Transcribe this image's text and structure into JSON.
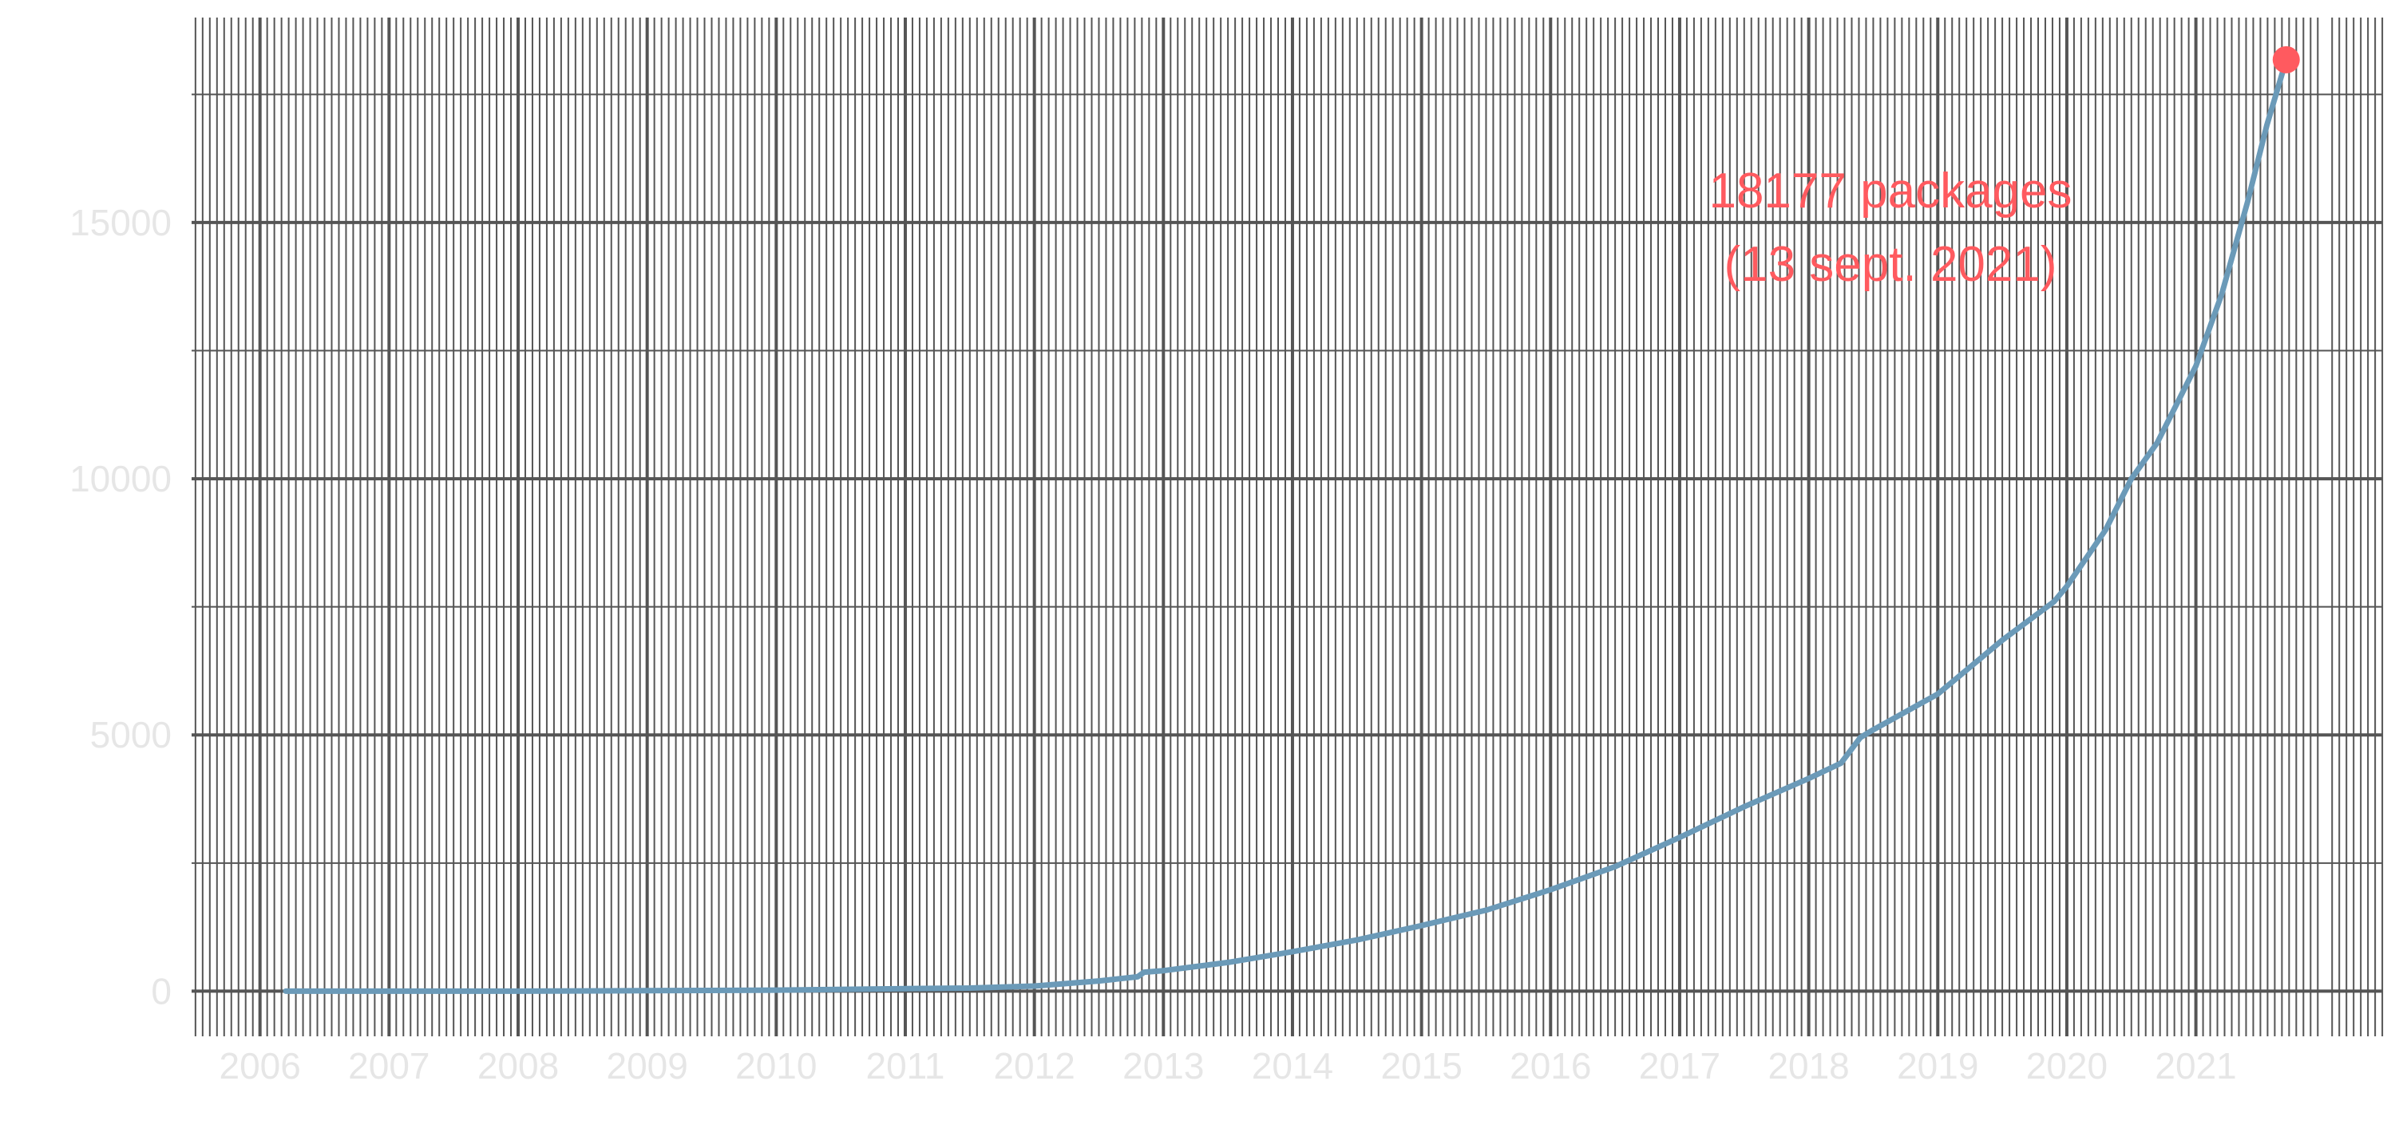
{
  "chart_data": {
    "type": "line",
    "title": "",
    "xlabel": "",
    "ylabel": "",
    "x_ticks": [
      "2006",
      "2007",
      "2008",
      "2009",
      "2010",
      "2011",
      "2012",
      "2013",
      "2014",
      "2015",
      "2016",
      "2017",
      "2018",
      "2019",
      "2020",
      "2021"
    ],
    "y_ticks": [
      "0",
      "5000",
      "10000",
      "15000"
    ],
    "xlim": [
      2005.47,
      2022.45
    ],
    "ylim": [
      -850,
      19000
    ],
    "grid": true,
    "legend": "none",
    "colors": {
      "line": "#6b9ab8",
      "highlight": "#ff5a5f",
      "grid": "#555555",
      "tick_label": "#e6e6e6",
      "background": "#ffffff"
    },
    "series": [
      {
        "values": [
          [
            2006.2,
            0
          ],
          [
            2007.0,
            0
          ],
          [
            2008.0,
            0
          ],
          [
            2009.0,
            10
          ],
          [
            2010.0,
            20
          ],
          [
            2011.0,
            50
          ],
          [
            2011.5,
            60
          ],
          [
            2012.0,
            100
          ],
          [
            2012.5,
            200
          ],
          [
            2012.8,
            280
          ],
          [
            2012.85,
            370
          ],
          [
            2013.0,
            400
          ],
          [
            2013.5,
            560
          ],
          [
            2014.0,
            770
          ],
          [
            2014.5,
            1000
          ],
          [
            2015.0,
            1280
          ],
          [
            2015.5,
            1580
          ],
          [
            2016.0,
            1980
          ],
          [
            2016.5,
            2430
          ],
          [
            2017.0,
            3000
          ],
          [
            2017.5,
            3600
          ],
          [
            2018.0,
            4150
          ],
          [
            2018.25,
            4450
          ],
          [
            2018.4,
            4950
          ],
          [
            2018.5,
            5100
          ],
          [
            2019.0,
            5800
          ],
          [
            2019.5,
            6850
          ],
          [
            2019.9,
            7600
          ],
          [
            2020.0,
            7900
          ],
          [
            2020.3,
            9000
          ],
          [
            2020.5,
            10000
          ],
          [
            2020.7,
            10700
          ],
          [
            2021.0,
            12200
          ],
          [
            2021.2,
            13600
          ],
          [
            2021.4,
            15400
          ],
          [
            2021.55,
            16900
          ],
          [
            2021.7,
            18177
          ]
        ]
      }
    ],
    "highlight_point": {
      "x": 2021.7,
      "y": 18177
    },
    "annotation": {
      "line1": "18177 packages",
      "line2": "(13 sept. 2021)"
    }
  }
}
